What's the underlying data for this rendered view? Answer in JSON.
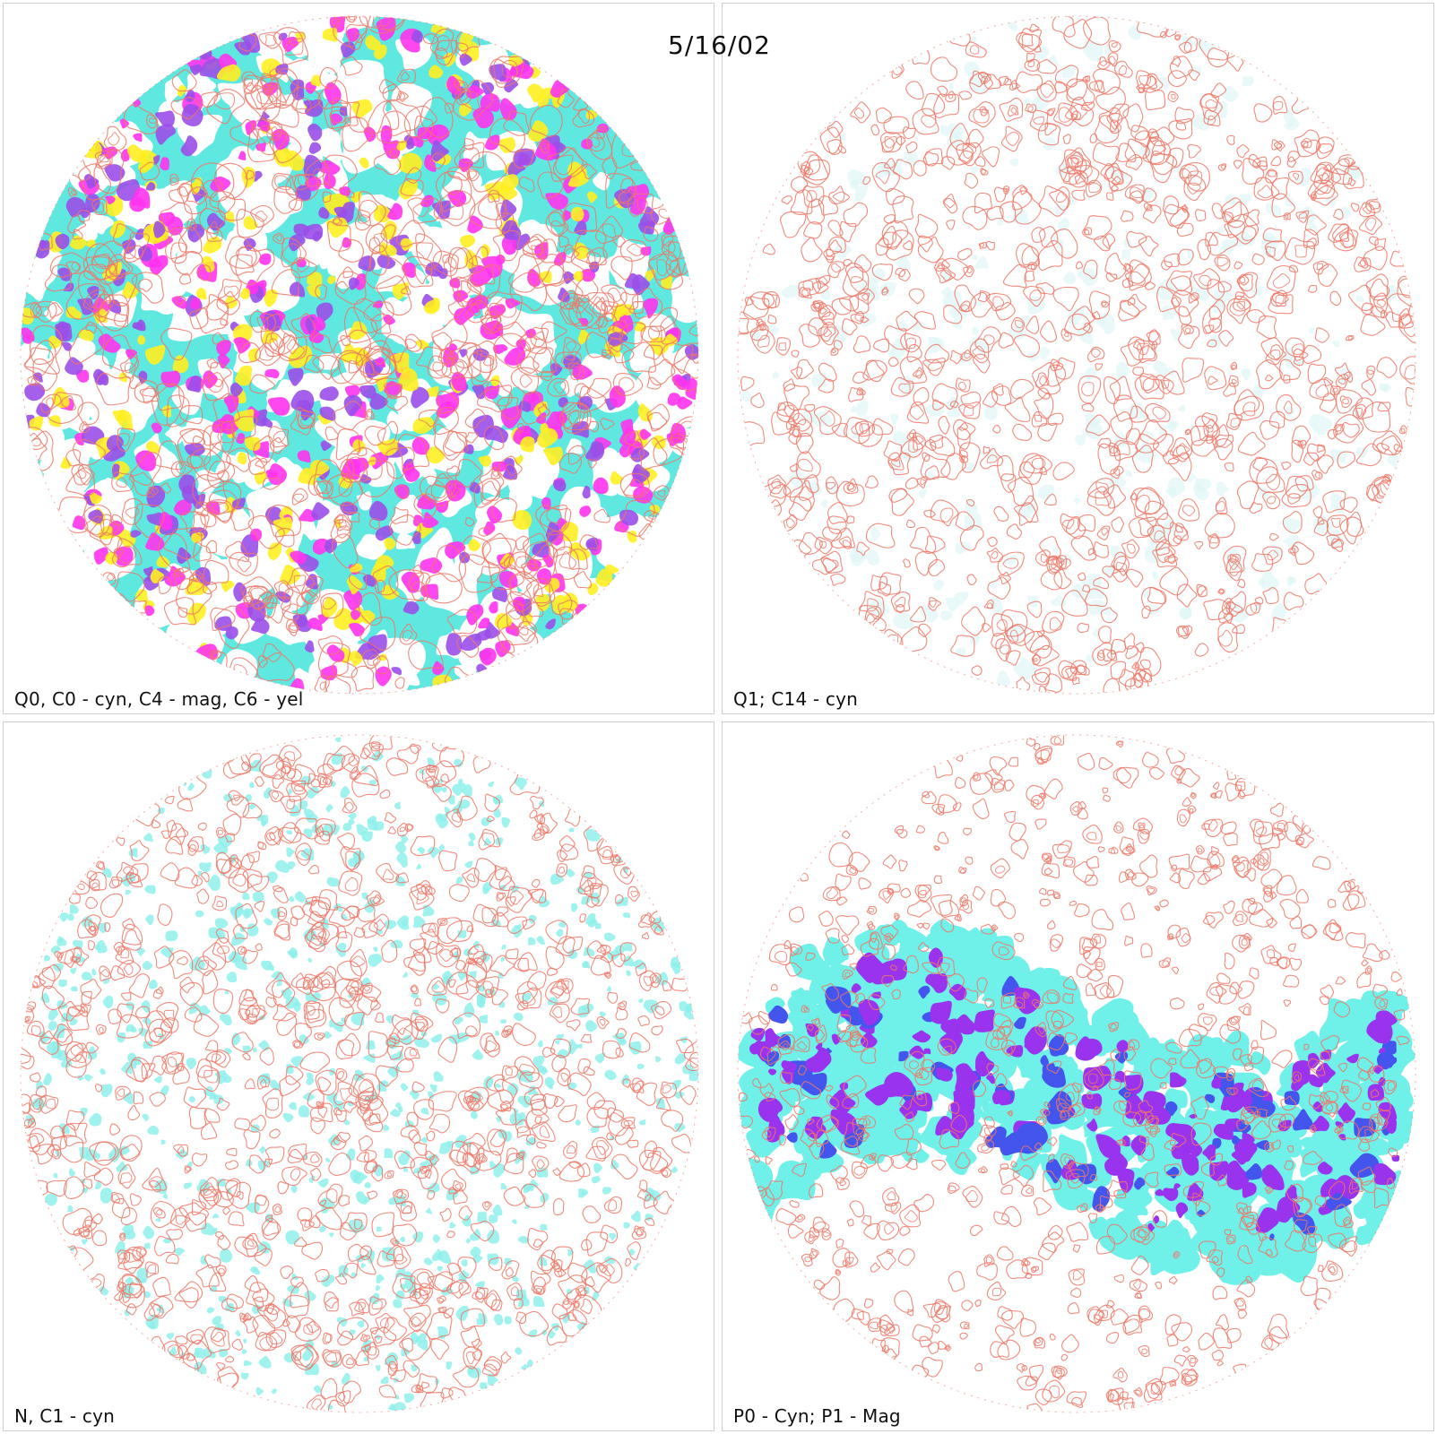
{
  "date_label": "5/16/02",
  "panels": [
    {
      "caption": "Q0, C0 - cyn, C4 - mag, C6 - yel",
      "fill_colors": [
        "#5ee8e0",
        "#9a4fe8",
        "#ff33ee",
        "#ffee22"
      ],
      "contour_color": "#ee7766"
    },
    {
      "caption": "Q1; C14 - cyn",
      "fill_colors": [
        "#dff7f6"
      ],
      "contour_color": "#ee7766"
    },
    {
      "caption": "N, C1 - cyn",
      "fill_colors": [
        "#8ef0ea"
      ],
      "contour_color": "#ee7766"
    },
    {
      "caption": "P0 - Cyn; P1 - Mag",
      "fill_colors": [
        "#6ff0e8",
        "#9933ee",
        "#4455ee"
      ],
      "contour_color": "#ee7766"
    }
  ]
}
